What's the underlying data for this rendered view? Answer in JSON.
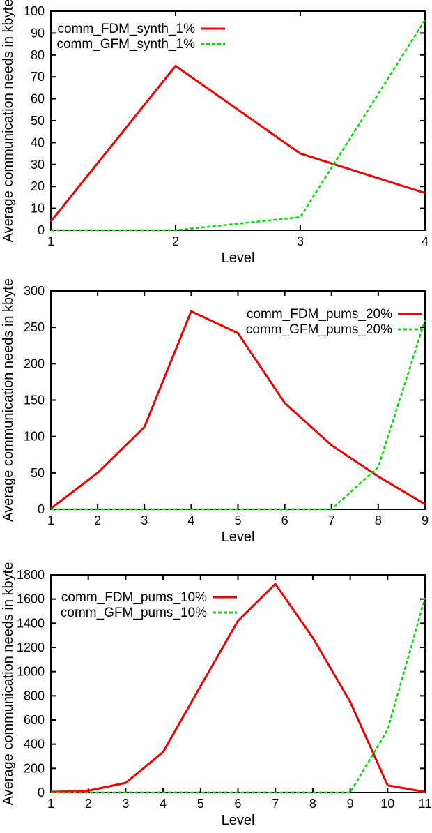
{
  "page": {
    "background": "#ffffff"
  },
  "chart_data": [
    {
      "id": "synth-1pct",
      "type": "line",
      "title": "",
      "xlabel": "Level",
      "ylabel": "Average communication needs in kbyte",
      "xlim": [
        1,
        4
      ],
      "ylim": [
        0,
        100
      ],
      "xticks": [
        1,
        2,
        3,
        4
      ],
      "yticks": [
        0,
        10,
        20,
        30,
        40,
        50,
        60,
        70,
        80,
        90,
        100
      ],
      "grid": false,
      "legend_position": "top-left",
      "x": [
        1,
        2,
        3,
        4
      ],
      "series": [
        {
          "name": "comm_FDM_synth_1%",
          "color": "#ee0000",
          "style": "solid",
          "values": [
            4,
            75,
            35,
            17
          ]
        },
        {
          "name": "comm_GFM_synth_1%",
          "color": "#00dd00",
          "style": "dashed",
          "values": [
            0,
            0,
            6,
            96
          ]
        }
      ]
    },
    {
      "id": "pums-20pct",
      "type": "line",
      "title": "",
      "xlabel": "Level",
      "ylabel": "Average communication needs in kbyte",
      "xlim": [
        1,
        9
      ],
      "ylim": [
        0,
        300
      ],
      "xticks": [
        1,
        2,
        3,
        4,
        5,
        6,
        7,
        8,
        9
      ],
      "yticks": [
        0,
        50,
        100,
        150,
        200,
        250,
        300
      ],
      "grid": false,
      "legend_position": "top-right",
      "x": [
        1,
        2,
        3,
        4,
        5,
        6,
        7,
        8,
        9
      ],
      "series": [
        {
          "name": "comm_FDM_pums_20%",
          "color": "#ee0000",
          "style": "solid",
          "values": [
            1,
            50,
            113,
            272,
            242,
            146,
            88,
            45,
            7
          ]
        },
        {
          "name": "comm_GFM_pums_20%",
          "color": "#00dd00",
          "style": "dashed",
          "values": [
            0,
            0,
            0,
            0,
            0,
            0,
            0,
            58,
            260
          ]
        }
      ]
    },
    {
      "id": "pums-10pct",
      "type": "line",
      "title": "",
      "xlabel": "Level",
      "ylabel": "Average communication needs in kbyte",
      "xlim": [
        1,
        11
      ],
      "ylim": [
        0,
        1800
      ],
      "xticks": [
        1,
        2,
        3,
        4,
        5,
        6,
        7,
        8,
        9,
        10,
        11
      ],
      "yticks": [
        0,
        200,
        400,
        600,
        800,
        1000,
        1200,
        1400,
        1600,
        1800
      ],
      "grid": false,
      "legend_position": "top-left",
      "x": [
        1,
        2,
        3,
        4,
        5,
        6,
        7,
        8,
        9,
        10,
        11
      ],
      "series": [
        {
          "name": "comm_FDM_pums_10%",
          "color": "#ee0000",
          "style": "solid",
          "values": [
            5,
            15,
            80,
            335,
            880,
            1420,
            1725,
            1280,
            750,
            60,
            5
          ]
        },
        {
          "name": "comm_GFM_pums_10%",
          "color": "#00dd00",
          "style": "dashed",
          "values": [
            0,
            0,
            0,
            0,
            0,
            0,
            0,
            0,
            0,
            520,
            1610
          ]
        }
      ]
    }
  ]
}
